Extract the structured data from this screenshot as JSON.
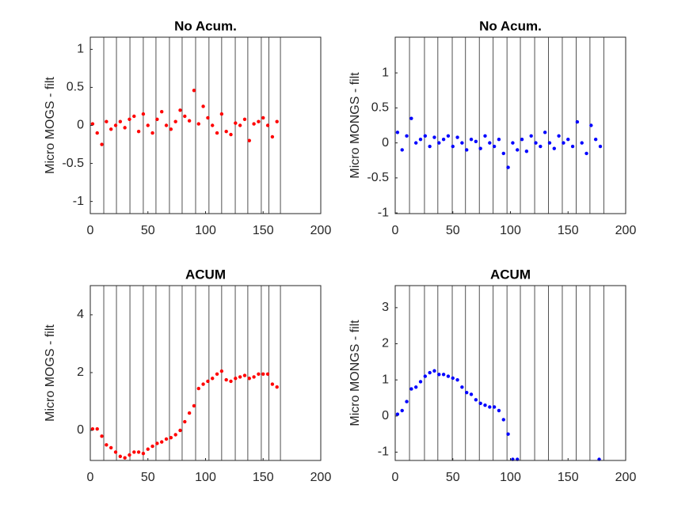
{
  "chart_data": [
    {
      "type": "scatter",
      "title": "No Acum.",
      "y_label": "Micro MOGS - filt",
      "color": "#ff0000",
      "xlim": [
        0,
        200
      ],
      "xticks": [
        0,
        50,
        100,
        150,
        200
      ],
      "ylim": [
        -1.16,
        1.16
      ],
      "yticks": [
        -1,
        -0.5,
        0,
        0.5,
        1
      ],
      "vlines": [
        11.7,
        22.7,
        34.4,
        46,
        57,
        68.7,
        79.7,
        91.4,
        103,
        114,
        125.8,
        136.7,
        148.4,
        155,
        165
      ],
      "x": [
        2,
        6,
        10,
        14,
        18,
        22,
        26,
        30,
        34,
        38,
        42,
        46,
        50,
        54,
        58,
        62,
        66,
        70,
        74,
        78,
        82,
        86,
        90,
        94,
        98,
        102,
        106,
        110,
        114,
        118,
        122,
        126,
        130,
        134,
        138,
        142,
        146,
        150,
        154,
        158,
        162
      ],
      "values": [
        0.02,
        -0.1,
        -0.25,
        0.05,
        -0.05,
        0.0,
        0.05,
        -0.03,
        0.08,
        0.12,
        -0.08,
        0.15,
        0.0,
        -0.1,
        0.08,
        0.18,
        0.0,
        -0.05,
        0.05,
        0.2,
        0.12,
        0.06,
        0.46,
        0.02,
        0.25,
        0.1,
        0.0,
        -0.1,
        0.15,
        -0.08,
        -0.12,
        0.03,
        0.0,
        0.08,
        -0.2,
        0.02,
        0.05,
        0.1,
        0.0,
        -0.15,
        0.05
      ]
    },
    {
      "type": "scatter",
      "title": "No Acum.",
      "y_label": "Micro MONGS - filt",
      "color": "#0000ff",
      "xlim": [
        0,
        200
      ],
      "xticks": [
        0,
        50,
        100,
        150,
        200
      ],
      "ylim": [
        -1.01,
        1.51
      ],
      "yticks": [
        -1,
        -0.5,
        0,
        0.5,
        1
      ],
      "vlines": [
        12.4,
        25.4,
        37,
        49.5,
        61,
        73,
        85,
        97,
        108.6,
        121,
        133,
        145,
        157,
        169,
        181
      ],
      "x": [
        2,
        6,
        10,
        14,
        18,
        22,
        26,
        30,
        34,
        38,
        42,
        46,
        50,
        54,
        58,
        62,
        66,
        70,
        74,
        78,
        82,
        86,
        90,
        94,
        98,
        102,
        106,
        110,
        114,
        118,
        122,
        126,
        130,
        134,
        138,
        142,
        146,
        150,
        154,
        158,
        162,
        166,
        170,
        174,
        178
      ],
      "values": [
        0.15,
        -0.1,
        0.1,
        0.35,
        0.0,
        0.05,
        0.1,
        -0.05,
        0.08,
        0.0,
        0.05,
        0.1,
        -0.05,
        0.08,
        0.0,
        -0.1,
        0.05,
        0.02,
        -0.08,
        0.1,
        0.0,
        -0.05,
        0.05,
        -0.15,
        -0.35,
        0.0,
        -0.1,
        0.05,
        -0.12,
        0.1,
        0.0,
        -0.05,
        0.15,
        0.0,
        -0.08,
        0.1,
        0.0,
        0.05,
        -0.05,
        0.3,
        0.0,
        -0.15,
        0.25,
        0.05,
        -0.05
      ]
    },
    {
      "type": "scatter",
      "title": "ACUM",
      "y_label": "Micro MOGS - filt",
      "color": "#ff0000",
      "xlim": [
        0,
        200
      ],
      "xticks": [
        0,
        50,
        100,
        150,
        200
      ],
      "ylim": [
        -1.04,
        5.01
      ],
      "yticks": [
        0,
        2,
        4
      ],
      "vlines": [
        11.7,
        22.7,
        34.4,
        46,
        57,
        68.7,
        79.7,
        91.4,
        103,
        114,
        125.8,
        136.7,
        148.4,
        155,
        165
      ],
      "x": [
        2,
        6,
        10,
        14,
        18,
        22,
        26,
        30,
        34,
        38,
        42,
        46,
        50,
        54,
        58,
        62,
        66,
        70,
        74,
        78,
        82,
        86,
        90,
        94,
        98,
        102,
        106,
        110,
        114,
        118,
        122,
        126,
        130,
        134,
        138,
        142,
        146,
        150,
        154,
        158,
        162
      ],
      "values": [
        0.05,
        0.05,
        -0.2,
        -0.5,
        -0.6,
        -0.75,
        -0.9,
        -0.95,
        -0.85,
        -0.75,
        -0.75,
        -0.8,
        -0.65,
        -0.55,
        -0.45,
        -0.4,
        -0.3,
        -0.25,
        -0.15,
        0.0,
        0.3,
        0.6,
        0.85,
        1.45,
        1.6,
        1.7,
        1.8,
        1.95,
        2.05,
        1.75,
        1.7,
        1.8,
        1.85,
        1.9,
        1.8,
        1.85,
        1.95,
        1.95,
        1.95,
        1.6,
        1.5
      ]
    },
    {
      "type": "scatter",
      "title": "ACUM",
      "y_label": "Micro MONGS - filt",
      "color": "#0000ff",
      "xlim": [
        0,
        200
      ],
      "xticks": [
        0,
        50,
        100,
        150,
        200
      ],
      "ylim": [
        -1.23,
        3.61
      ],
      "yticks": [
        -1,
        0,
        1,
        2,
        3
      ],
      "vlines": [
        12.4,
        25.4,
        37,
        49.5,
        61,
        73,
        85,
        97,
        108.6,
        121,
        133,
        145,
        157,
        169,
        181
      ],
      "x": [
        2,
        6,
        10,
        14,
        18,
        22,
        26,
        30,
        34,
        38,
        42,
        46,
        50,
        54,
        58,
        62,
        66,
        70,
        74,
        78,
        82,
        86,
        90,
        94,
        98,
        102,
        106,
        177
      ],
      "values": [
        0.05,
        0.15,
        0.4,
        0.75,
        0.8,
        0.95,
        1.1,
        1.2,
        1.25,
        1.15,
        1.15,
        1.1,
        1.05,
        1.0,
        0.8,
        0.65,
        0.6,
        0.45,
        0.35,
        0.3,
        0.25,
        0.25,
        0.15,
        -0.1,
        -0.5,
        -1.2,
        -1.2,
        -1.2
      ]
    }
  ]
}
